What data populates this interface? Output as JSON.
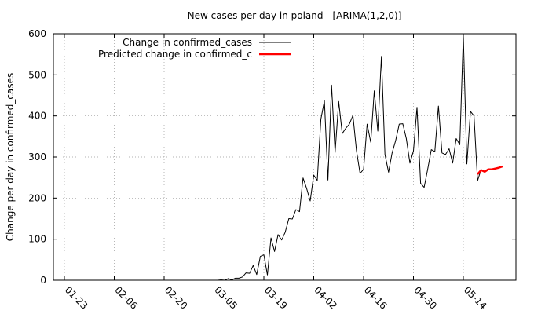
{
  "chart_data": {
    "type": "line",
    "title": "New cases per day in poland -  [ARIMA(1,2,0)]",
    "xlabel": "",
    "ylabel": "Change per day in confirmed_cases",
    "ylim": [
      0,
      600
    ],
    "yticks": [
      "0",
      "100",
      "200",
      "300",
      "400",
      "500",
      "600"
    ],
    "xticks": [
      "01-23",
      "02-06",
      "02-20",
      "03-05",
      "03-19",
      "04-02",
      "04-16",
      "04-30",
      "05-14"
    ],
    "grid": true,
    "legend_position": "top-right",
    "series": [
      {
        "name": "Change in confirmed_cases",
        "color": "#000000",
        "x_start": "01-23",
        "x_end": "05-16",
        "values": [
          0,
          0,
          0,
          0,
          0,
          0,
          0,
          0,
          0,
          0,
          0,
          0,
          0,
          0,
          0,
          0,
          0,
          0,
          0,
          0,
          0,
          0,
          0,
          0,
          0,
          0,
          0,
          0,
          0,
          0,
          0,
          0,
          0,
          0,
          0,
          0,
          0,
          0,
          0,
          0,
          0,
          0,
          0,
          0,
          1,
          0,
          4,
          1,
          5,
          5,
          8,
          18,
          17,
          36,
          14,
          58,
          62,
          13,
          103,
          70,
          111,
          98,
          117,
          150,
          149,
          172,
          167,
          249,
          224,
          193,
          256,
          243,
          392,
          437,
          244,
          475,
          311,
          435,
          357,
          370,
          380,
          401,
          316,
          260,
          270,
          380,
          336,
          461,
          363,
          545,
          306,
          263,
          310,
          340,
          380,
          381,
          345,
          285,
          315,
          421,
          236,
          226,
          270,
          318,
          313,
          424,
          310,
          306,
          320,
          285,
          345,
          330,
          595,
          283,
          411,
          400,
          242,
          270
        ]
      },
      {
        "name": "Predicted change in confirmed_c",
        "color": "#ff0000",
        "x_start": "05-18",
        "x_end": "05-26",
        "values": [
          258,
          268,
          264,
          270,
          270,
          272,
          274,
          277
        ]
      }
    ]
  }
}
